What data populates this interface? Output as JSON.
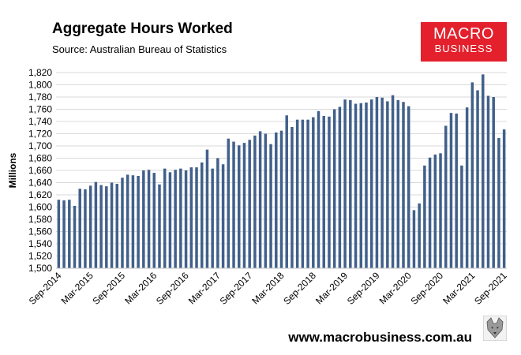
{
  "header": {
    "title": "Aggregate Hours Worked",
    "source": "Source: Australian Bureau of Statistics"
  },
  "logo": {
    "top": "MACRO",
    "bottom": "BUSINESS",
    "color": "#e3202c"
  },
  "footer": {
    "website": "www.macrobusiness.com.au",
    "icon": "wolf-icon"
  },
  "chart_data": {
    "type": "bar",
    "title": "Aggregate Hours Worked",
    "ylabel": "Millions",
    "ylim": [
      1500,
      1820
    ],
    "yticks": [
      1500,
      1520,
      1540,
      1560,
      1580,
      1600,
      1620,
      1640,
      1660,
      1680,
      1700,
      1720,
      1740,
      1760,
      1780,
      1800,
      1820
    ],
    "ytick_labels": [
      "1,500",
      "1,520",
      "1,540",
      "1,560",
      "1,580",
      "1,600",
      "1,620",
      "1,640",
      "1,660",
      "1,680",
      "1,700",
      "1,720",
      "1,740",
      "1,760",
      "1,780",
      "1,800",
      "1,820"
    ],
    "xtick_labels": [
      "Sep-2014",
      "Mar-2015",
      "Sep-2015",
      "Mar-2016",
      "Sep-2016",
      "Mar-2017",
      "Sep-2017",
      "Mar-2018",
      "Sep-2018",
      "Mar-2019",
      "Sep-2019",
      "Mar-2020",
      "Sep-2020",
      "Mar-2021",
      "Sep-2021"
    ],
    "grid": true,
    "bar_color": "#41608a",
    "categories": [
      "Sep-2014",
      "Oct-2014",
      "Nov-2014",
      "Dec-2014",
      "Jan-2015",
      "Feb-2015",
      "Mar-2015",
      "Apr-2015",
      "May-2015",
      "Jun-2015",
      "Jul-2015",
      "Aug-2015",
      "Sep-2015",
      "Oct-2015",
      "Nov-2015",
      "Dec-2015",
      "Jan-2016",
      "Feb-2016",
      "Mar-2016",
      "Apr-2016",
      "May-2016",
      "Jun-2016",
      "Jul-2016",
      "Aug-2016",
      "Sep-2016",
      "Oct-2016",
      "Nov-2016",
      "Dec-2016",
      "Jan-2017",
      "Feb-2017",
      "Mar-2017",
      "Apr-2017",
      "May-2017",
      "Jun-2017",
      "Jul-2017",
      "Aug-2017",
      "Sep-2017",
      "Oct-2017",
      "Nov-2017",
      "Dec-2017",
      "Jan-2018",
      "Feb-2018",
      "Mar-2018",
      "Apr-2018",
      "May-2018",
      "Jun-2018",
      "Jul-2018",
      "Aug-2018",
      "Sep-2018",
      "Oct-2018",
      "Nov-2018",
      "Dec-2018",
      "Jan-2019",
      "Feb-2019",
      "Mar-2019",
      "Apr-2019",
      "May-2019",
      "Jun-2019",
      "Jul-2019",
      "Aug-2019",
      "Sep-2019",
      "Oct-2019",
      "Nov-2019",
      "Dec-2019",
      "Jan-2020",
      "Feb-2020",
      "Mar-2020",
      "Apr-2020",
      "May-2020",
      "Jun-2020",
      "Jul-2020",
      "Aug-2020",
      "Sep-2020",
      "Oct-2020",
      "Nov-2020",
      "Dec-2020",
      "Jan-2021",
      "Feb-2021",
      "Mar-2021",
      "Apr-2021",
      "May-2021",
      "Jun-2021",
      "Jul-2021",
      "Aug-2021",
      "Sep-2021"
    ],
    "values": [
      1612,
      1611,
      1612,
      1602,
      1630,
      1629,
      1635,
      1641,
      1636,
      1634,
      1640,
      1638,
      1648,
      1653,
      1652,
      1651,
      1660,
      1661,
      1656,
      1637,
      1663,
      1657,
      1661,
      1663,
      1660,
      1665,
      1665,
      1673,
      1694,
      1663,
      1680,
      1670,
      1712,
      1707,
      1701,
      1705,
      1710,
      1717,
      1724,
      1720,
      1703,
      1722,
      1725,
      1750,
      1731,
      1743,
      1743,
      1743,
      1747,
      1757,
      1749,
      1748,
      1760,
      1764,
      1776,
      1775,
      1769,
      1770,
      1771,
      1776,
      1780,
      1779,
      1773,
      1783,
      1775,
      1772,
      1765,
      1595,
      1606,
      1668,
      1681,
      1686,
      1688,
      1733,
      1754,
      1753,
      1668,
      1763,
      1804,
      1791,
      1817,
      1782,
      1780,
      1713,
      1727
    ]
  }
}
